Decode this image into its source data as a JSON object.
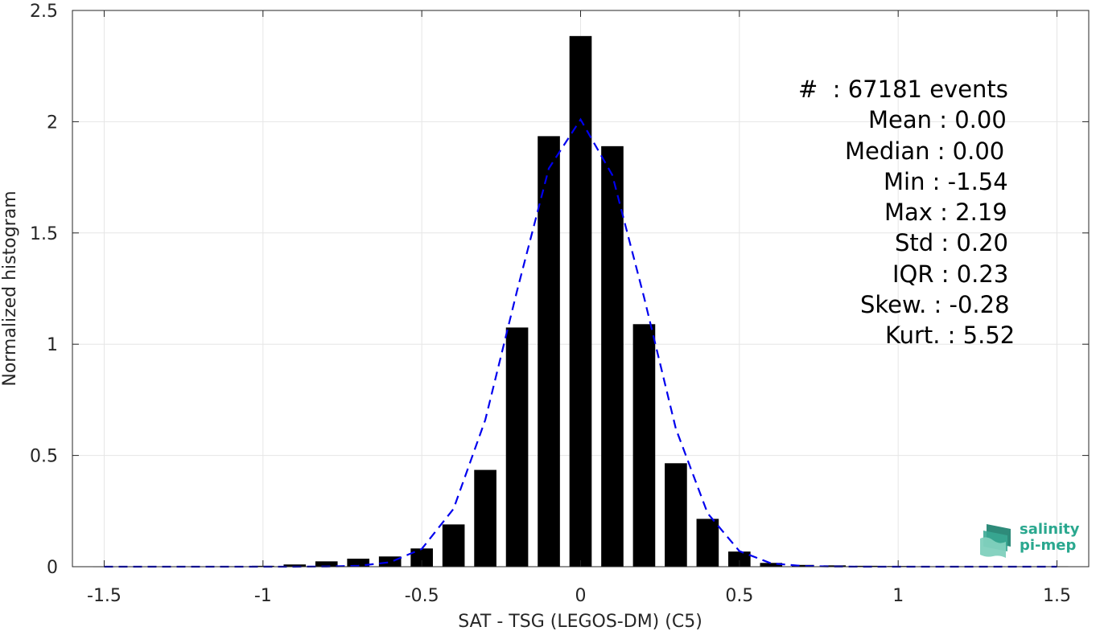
{
  "chart_data": {
    "type": "bar",
    "xlabel": "SAT - TSG (LEGOS-DM) (C5)",
    "ylabel": "Normalized histogram",
    "xlim": [
      -1.6,
      1.6
    ],
    "ylim": [
      0,
      2.5
    ],
    "xticks": [
      -1.5,
      -1,
      -0.5,
      0,
      0.5,
      1,
      1.5
    ],
    "yticks": [
      0,
      0.5,
      1,
      1.5,
      2,
      2.5
    ],
    "xtick_labels": [
      "-1.5",
      "-1",
      "-0.5",
      "0",
      "0.5",
      "1",
      "1.5"
    ],
    "ytick_labels": [
      "0",
      "0.5",
      "1",
      "1.5",
      "2",
      "2.5"
    ],
    "grid": true,
    "bar_width": 0.07,
    "bars": {
      "x": [
        -1.5,
        -1.4,
        -1.3,
        -1.2,
        -1.1,
        -1.0,
        -0.9,
        -0.8,
        -0.7,
        -0.6,
        -0.5,
        -0.4,
        -0.3,
        -0.2,
        -0.1,
        0.0,
        0.1,
        0.2,
        0.3,
        0.4,
        0.5,
        0.6,
        0.7,
        0.8,
        0.9,
        1.0,
        1.1,
        1.2,
        1.3,
        1.4,
        1.5
      ],
      "values": [
        0.001,
        0.001,
        0.001,
        0.001,
        0.002,
        0.004,
        0.01,
        0.024,
        0.036,
        0.046,
        0.082,
        0.19,
        0.435,
        1.075,
        1.935,
        2.385,
        1.89,
        1.09,
        0.465,
        0.215,
        0.068,
        0.017,
        0.008,
        0.006,
        0.004,
        0.003,
        0.002,
        0.002,
        0.002,
        0.002,
        0.002
      ],
      "color": "#000000"
    },
    "fit": {
      "x": [
        -1.5,
        -1.4,
        -1.3,
        -1.2,
        -1.1,
        -1.0,
        -0.9,
        -0.8,
        -0.7,
        -0.6,
        -0.5,
        -0.4,
        -0.3,
        -0.2,
        -0.1,
        0.0,
        0.1,
        0.2,
        0.3,
        0.4,
        0.5,
        0.6,
        0.7,
        0.8,
        0.9,
        1.0,
        1.1,
        1.2,
        1.3,
        1.4,
        1.5
      ],
      "values": [
        0,
        0,
        0,
        0,
        0,
        0,
        0,
        0.001,
        0.004,
        0.02,
        0.08,
        0.26,
        0.66,
        1.24,
        1.79,
        2.01,
        1.76,
        1.21,
        0.62,
        0.24,
        0.07,
        0.015,
        0.003,
        0.001,
        0,
        0,
        0,
        0,
        0,
        0,
        0
      ],
      "color": "#0000ee",
      "style": "dashed"
    }
  },
  "stats": {
    "events": "#  : 67181 events",
    "mean": "Mean : 0.00",
    "median": "Median : 0.00",
    "min": "Min : -1.54",
    "max": "Max : 2.19",
    "std": "Std : 0.20",
    "iqr": "IQR : 0.23",
    "skew": "Skew. : -0.28",
    "kurt": "Kurt. : 5.52"
  },
  "logo": {
    "line1": "salinity",
    "line2": "pi-mep",
    "color": "#2aa88f"
  }
}
